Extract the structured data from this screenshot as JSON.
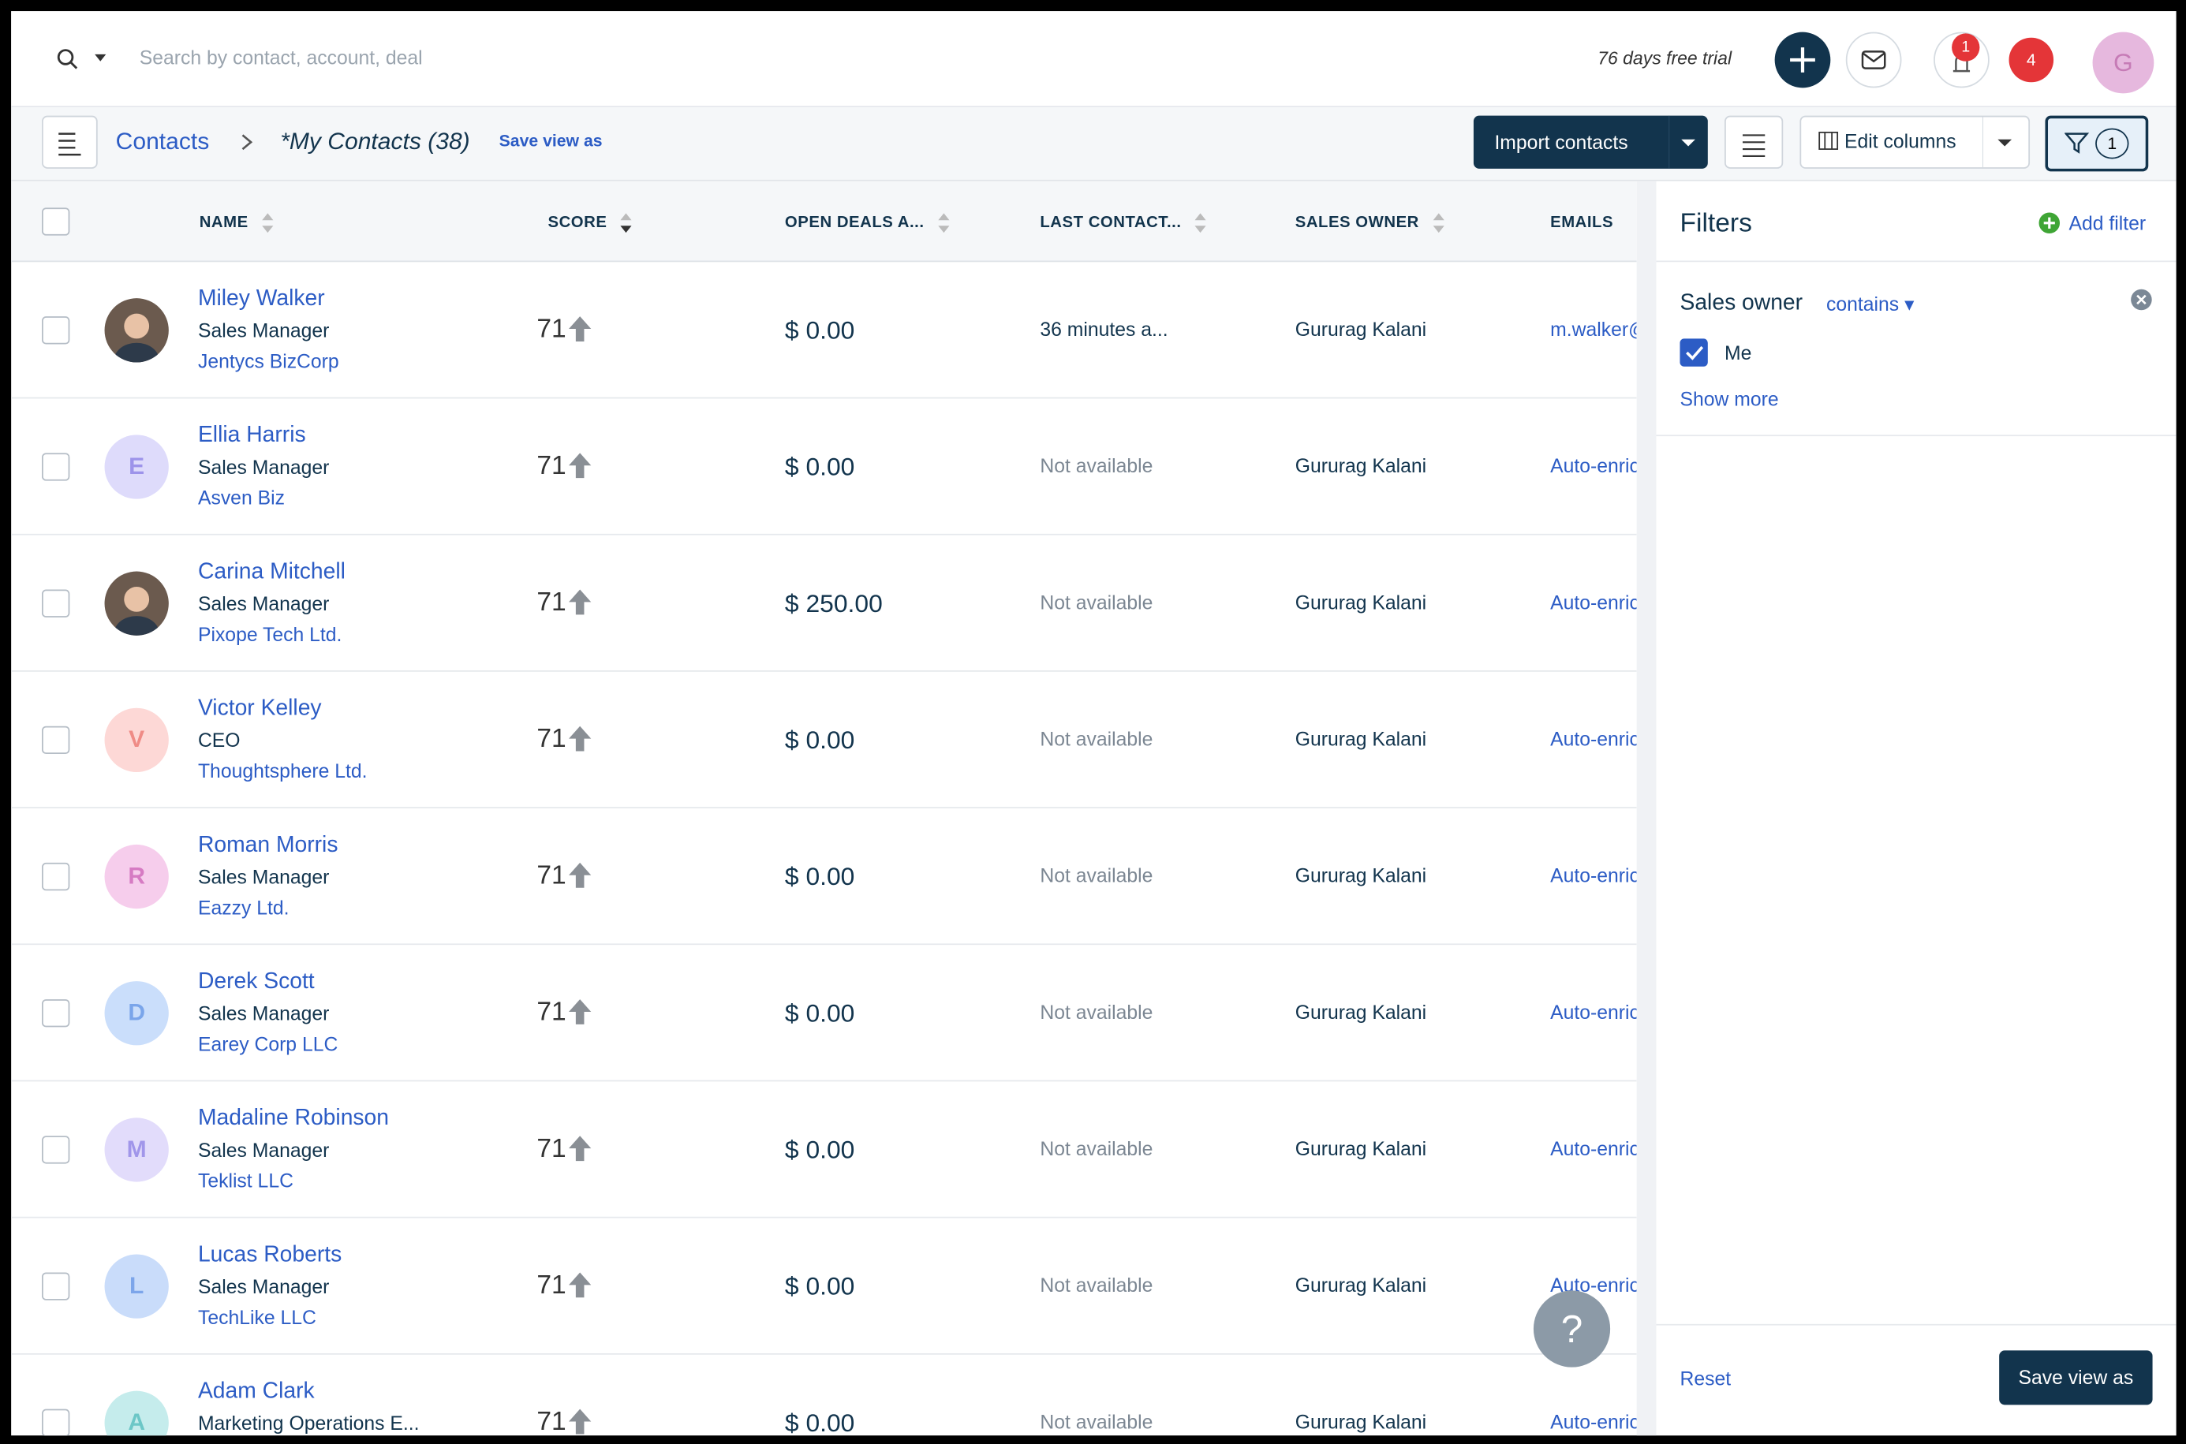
{
  "header": {
    "search_placeholder": "Search by contact, account, deal",
    "trial": "76 days free trial",
    "notification_badge": "1",
    "alert_count": "4",
    "avatar": "G"
  },
  "toolbar": {
    "breadcrumb": "Contacts",
    "view": "*My Contacts",
    "count": "(38)",
    "save_view": "Save view as",
    "import": "Import contacts",
    "edit_columns": "Edit columns",
    "filter_count": "1"
  },
  "table": {
    "columns": [
      "NAME",
      "SCORE",
      "OPEN DEALS A...",
      "LAST CONTACT...",
      "SALES OWNER",
      "EMAILS"
    ],
    "rows": [
      {
        "name": "Miley Walker",
        "title": "Sales Manager",
        "company": "Jentycs BizCorp",
        "score": "71",
        "deals": "$ 0.00",
        "last_contacted": "36 minutes a...",
        "owner": "Gururag Kalani",
        "email": "m.walker@..."
      },
      {
        "initial": "E",
        "name": "Ellia Harris",
        "title": "Sales Manager",
        "company": "Asven Biz",
        "score": "71",
        "deals": "$ 0.00",
        "last_contacted": "Not available",
        "owner": "Gururag Kalani",
        "email": "Auto-enrich"
      },
      {
        "name": "Carina Mitchell",
        "title": "Sales Manager",
        "company": "Pixope Tech Ltd.",
        "score": "71",
        "deals": "$ 250.00",
        "last_contacted": "Not available",
        "owner": "Gururag Kalani",
        "email": "Auto-enrich"
      },
      {
        "initial": "V",
        "name": "Victor Kelley",
        "title": "CEO",
        "company": "Thoughtsphere Ltd.",
        "score": "71",
        "deals": "$ 0.00",
        "last_contacted": "Not available",
        "owner": "Gururag Kalani",
        "email": "Auto-enrich"
      },
      {
        "initial": "R",
        "name": "Roman Morris",
        "title": "Sales Manager",
        "company": "Eazzy Ltd.",
        "score": "71",
        "deals": "$ 0.00",
        "last_contacted": "Not available",
        "owner": "Gururag Kalani",
        "email": "Auto-enrich"
      },
      {
        "initial": "D",
        "name": "Derek Scott",
        "title": "Sales Manager",
        "company": "Earey Corp LLC",
        "score": "71",
        "deals": "$ 0.00",
        "last_contacted": "Not available",
        "owner": "Gururag Kalani",
        "email": "Auto-enrich"
      },
      {
        "initial": "M",
        "name": "Madaline Robinson",
        "title": "Sales Manager",
        "company": "Teklist LLC",
        "score": "71",
        "deals": "$ 0.00",
        "last_contacted": "Not available",
        "owner": "Gururag Kalani",
        "email": "Auto-enrich"
      },
      {
        "initial": "L",
        "name": "Lucas Roberts",
        "title": "Sales Manager",
        "company": "TechLike LLC",
        "score": "71",
        "deals": "$ 0.00",
        "last_contacted": "Not available",
        "owner": "Gururag Kalani",
        "email": "Auto-enrich"
      },
      {
        "initial": "A",
        "name": "Adam Clark",
        "title": "Marketing Operations E...",
        "company": "",
        "score": "71",
        "deals": "$ 0.00",
        "last_contacted": "Not available",
        "owner": "Gururag Kalani",
        "email": "Auto-enrich"
      }
    ]
  },
  "filters": {
    "title": "Filters",
    "add": "Add filter",
    "field": "Sales owner",
    "operator": "contains",
    "option": "Me",
    "show_more": "Show more",
    "reset": "Reset",
    "save": "Save view as"
  },
  "help": "?"
}
